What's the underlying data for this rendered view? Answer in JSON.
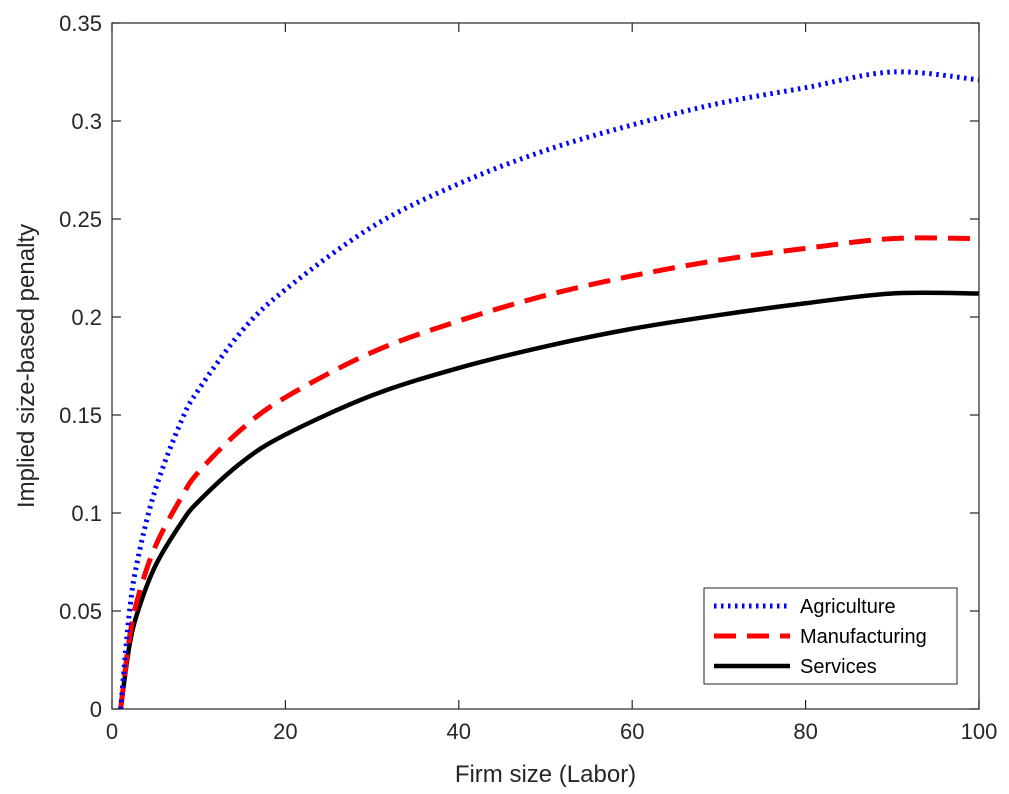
{
  "chart_data": {
    "type": "line",
    "title": "",
    "xlabel": "Firm size (Labor)",
    "ylabel": "Implied size-based penalty",
    "xlim": [
      0,
      100
    ],
    "ylim": [
      0,
      0.35
    ],
    "xticks": [
      0,
      20,
      40,
      60,
      80,
      100
    ],
    "xtick_labels": [
      "0",
      "20",
      "40",
      "60",
      "80",
      "100"
    ],
    "yticks": [
      0,
      0.05,
      0.1,
      0.15,
      0.2,
      0.25,
      0.3,
      0.35
    ],
    "ytick_labels": [
      "0",
      "0.05",
      "0.1",
      "0.15",
      "0.2",
      "0.25",
      "0.3",
      "0.35"
    ],
    "grid": false,
    "legend_position": "bottom-right",
    "x": [
      1,
      2,
      3,
      5,
      8,
      10,
      15,
      20,
      30,
      40,
      50,
      60,
      70,
      80,
      90,
      100
    ],
    "series": [
      {
        "name": "Agriculture",
        "color": "#0000ff",
        "style": "dotted",
        "values": [
          0,
          0.049,
          0.077,
          0.112,
          0.147,
          0.163,
          0.193,
          0.214,
          0.246,
          0.268,
          0.285,
          0.298,
          0.309,
          0.317,
          0.325,
          0.321
        ]
      },
      {
        "name": "Manufacturing",
        "color": "#ff0000",
        "style": "dashed",
        "values": [
          0,
          0.036,
          0.057,
          0.083,
          0.108,
          0.121,
          0.143,
          0.159,
          0.182,
          0.198,
          0.211,
          0.221,
          0.229,
          0.235,
          0.24,
          0.24
        ]
      },
      {
        "name": "Services",
        "color": "#000000",
        "style": "solid",
        "values": [
          0,
          0.032,
          0.05,
          0.073,
          0.095,
          0.106,
          0.126,
          0.14,
          0.16,
          0.174,
          0.185,
          0.194,
          0.201,
          0.207,
          0.212,
          0.212
        ]
      }
    ]
  }
}
